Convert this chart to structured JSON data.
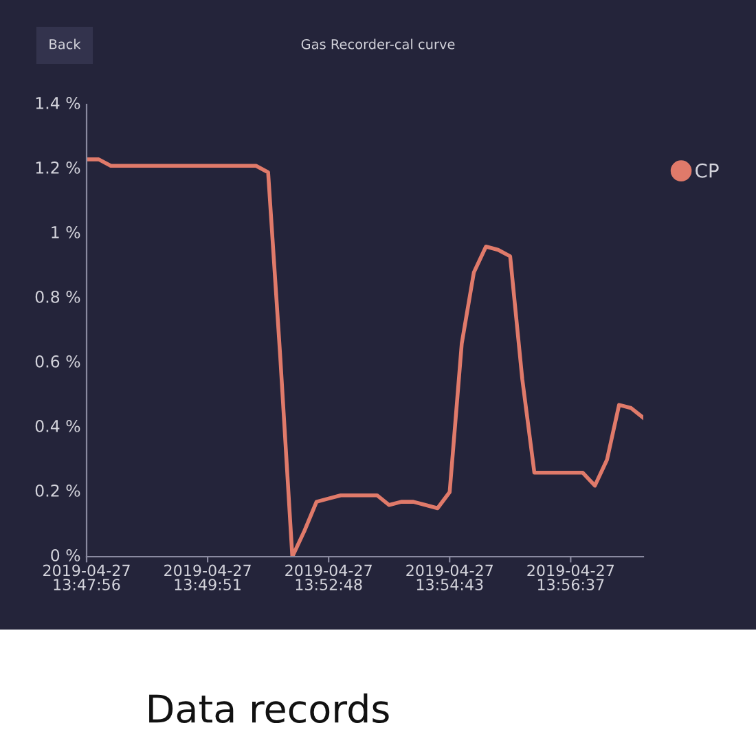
{
  "chart_data": {
    "type": "line",
    "title": "Gas Recorder-cal curve",
    "categories": [
      "2019-04-27\n13:47:56",
      null,
      null,
      null,
      null,
      null,
      null,
      null,
      null,
      null,
      "2019-04-27\n13:49:51",
      null,
      null,
      null,
      null,
      null,
      null,
      null,
      null,
      null,
      "2019-04-27\n13:52:48",
      null,
      null,
      null,
      null,
      null,
      null,
      null,
      null,
      null,
      "2019-04-27\n13:54:43",
      null,
      null,
      null,
      null,
      null,
      null,
      null,
      null,
      null,
      "2019-04-27\n13:56:37",
      null,
      null,
      null,
      null,
      null,
      null
    ],
    "series": [
      {
        "name": "CP",
        "color": "#e07a6a",
        "values": [
          1.23,
          1.23,
          1.21,
          1.21,
          1.21,
          1.21,
          1.21,
          1.21,
          1.21,
          1.21,
          1.21,
          1.21,
          1.21,
          1.21,
          1.21,
          1.19,
          0.62,
          0.0,
          0.08,
          0.17,
          0.18,
          0.19,
          0.19,
          0.19,
          0.19,
          0.16,
          0.17,
          0.17,
          0.16,
          0.15,
          0.2,
          0.66,
          0.88,
          0.96,
          0.95,
          0.93,
          0.55,
          0.26,
          0.26,
          0.26,
          0.26,
          0.26,
          0.22,
          0.3,
          0.47,
          0.46,
          0.43
        ]
      }
    ],
    "ylim": [
      0,
      1.4
    ],
    "yticks": [
      {
        "value": 0,
        "label": "0 %"
      },
      {
        "value": 0.2,
        "label": "0.2 %"
      },
      {
        "value": 0.4,
        "label": "0.4 %"
      },
      {
        "value": 0.6,
        "label": "0.6 %"
      },
      {
        "value": 0.8,
        "label": "0.8 %"
      },
      {
        "value": 1,
        "label": "1 %"
      },
      {
        "value": 1.2,
        "label": "1.2 %"
      },
      {
        "value": 1.4,
        "label": "1.4 %"
      }
    ],
    "grid": false,
    "legend": "right",
    "annotations": [
      "Back",
      "Data records"
    ]
  }
}
